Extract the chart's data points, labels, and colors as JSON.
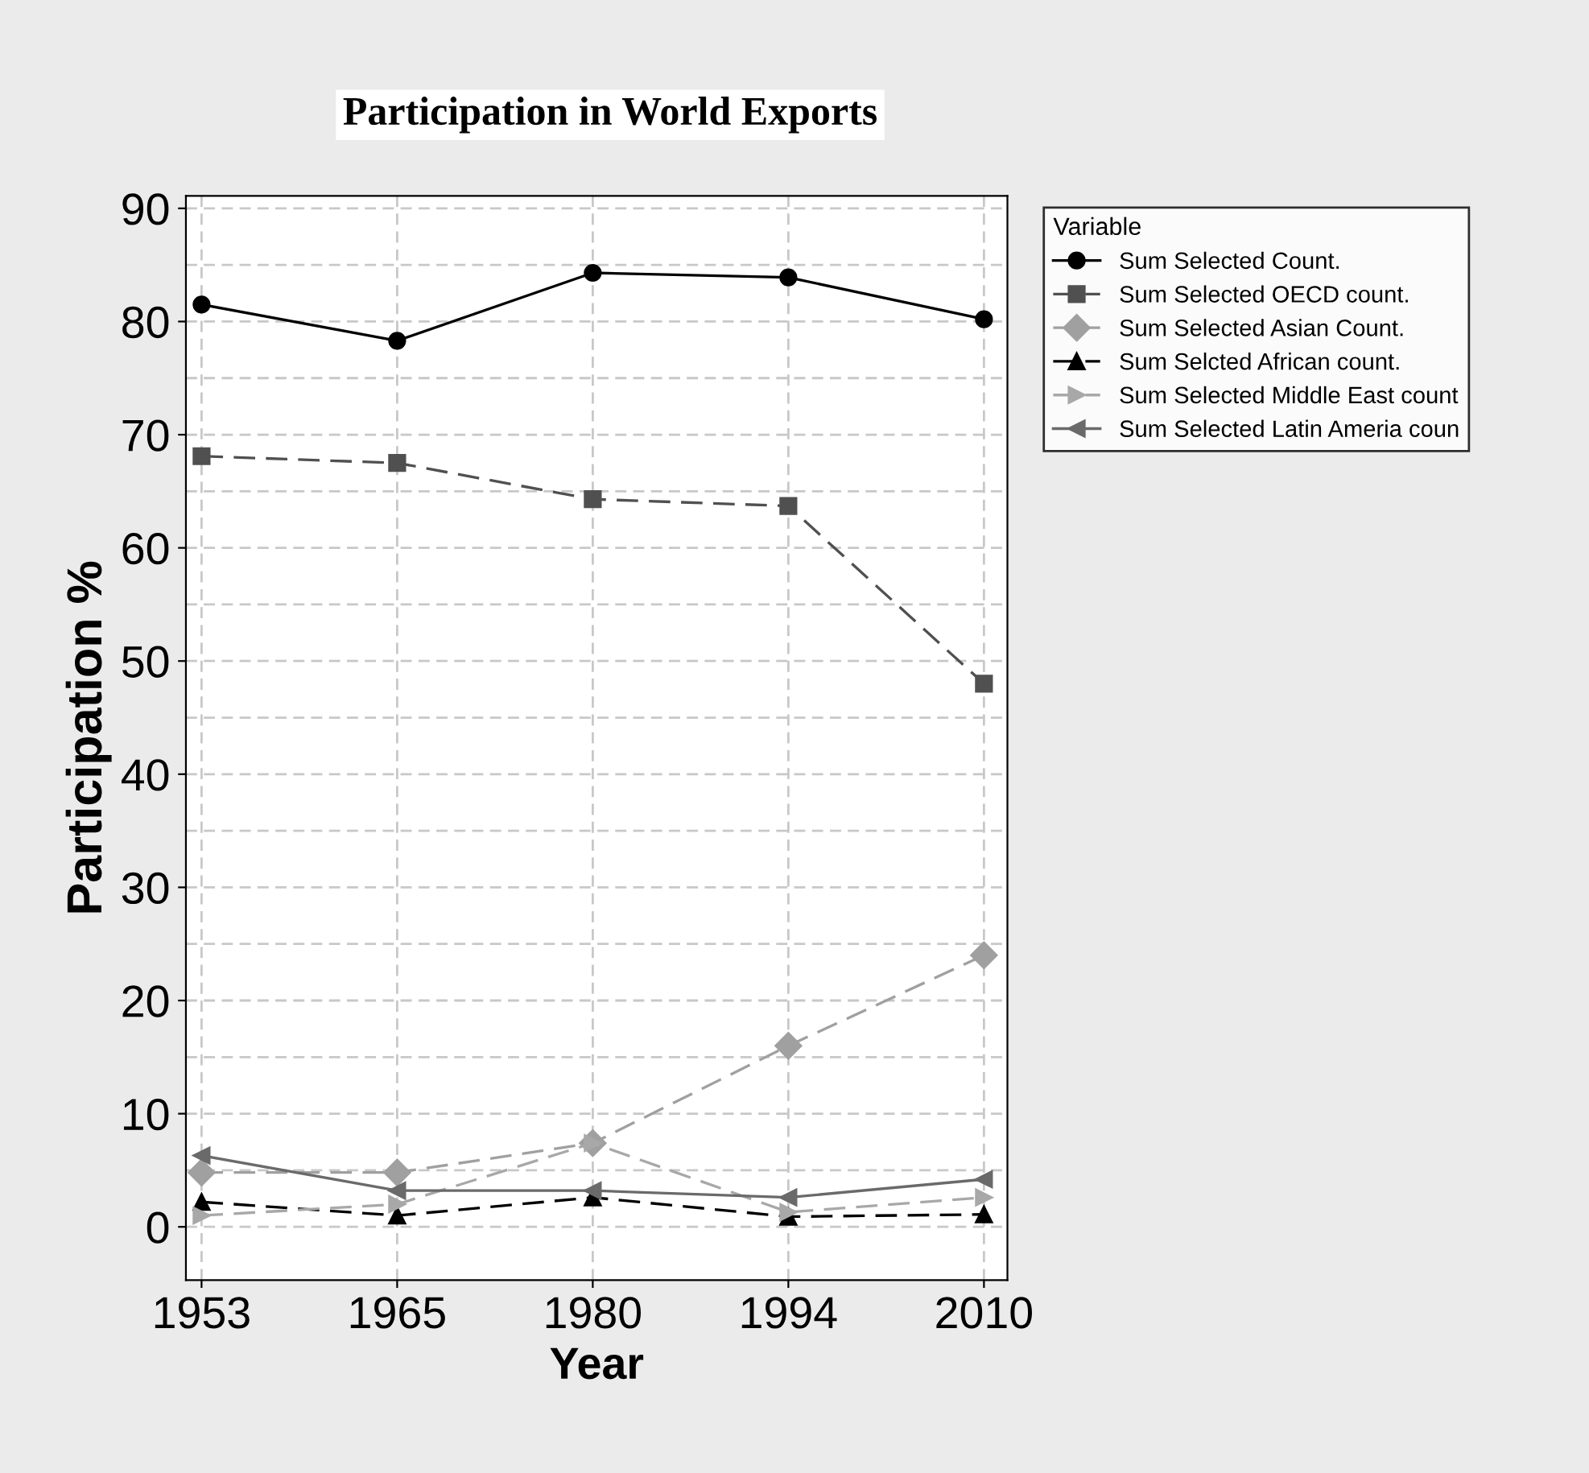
{
  "chart_data": {
    "type": "line",
    "title": "Participation in World Exports",
    "xlabel": "Year",
    "ylabel": "Participation %",
    "legend_title": "Variable",
    "categories": [
      "1953",
      "1965",
      "1980",
      "1994",
      "2010"
    ],
    "series": [
      {
        "name": "Sum Selected Count.",
        "color": "#000000",
        "marker": "circle",
        "line_style": "solid",
        "values": [
          81.5,
          78.3,
          84.3,
          83.9,
          80.2
        ]
      },
      {
        "name": "Sum Selected OECD count.",
        "color": "#505050",
        "marker": "square",
        "line_style": "dashed",
        "values": [
          68.1,
          67.5,
          64.3,
          63.7,
          48.0
        ]
      },
      {
        "name": "Sum Selected Asian Count.",
        "color": "#a0a0a0",
        "marker": "diamond",
        "line_style": "dashed",
        "values": [
          4.8,
          4.8,
          7.4,
          16.0,
          24.0
        ]
      },
      {
        "name": "Sum Selcted African count.",
        "color": "#000000",
        "marker": "triangle",
        "line_style": "dashed",
        "values": [
          2.2,
          1.0,
          2.6,
          0.9,
          1.1
        ]
      },
      {
        "name": "Sum Selected Middle East count",
        "color": "#a8a8a8",
        "marker": "triangle-right",
        "line_style": "dashed",
        "values": [
          1.0,
          2.0,
          7.4,
          1.3,
          2.6
        ]
      },
      {
        "name": "Sum Selected Latin Ameria coun",
        "color": "#6a6a6a",
        "marker": "triangle-left",
        "line_style": "solid",
        "values": [
          6.3,
          3.2,
          3.2,
          2.6,
          4.2
        ]
      }
    ],
    "ylim": [
      -4.7,
      91.1
    ],
    "yticks": [
      0,
      {
        "value": 5,
        "label": null
      },
      10,
      {
        "value": 15,
        "label": null
      },
      20,
      {
        "value": 25,
        "label": null
      },
      30,
      {
        "value": 35,
        "label": null
      },
      40,
      {
        "value": 45,
        "label": null
      },
      50,
      {
        "value": 55,
        "label": null
      },
      60,
      {
        "value": 65,
        "label": null
      },
      70,
      {
        "value": 75,
        "label": null
      },
      80,
      {
        "value": 85,
        "label": null
      },
      90
    ],
    "grid": true,
    "legend": "top right"
  }
}
